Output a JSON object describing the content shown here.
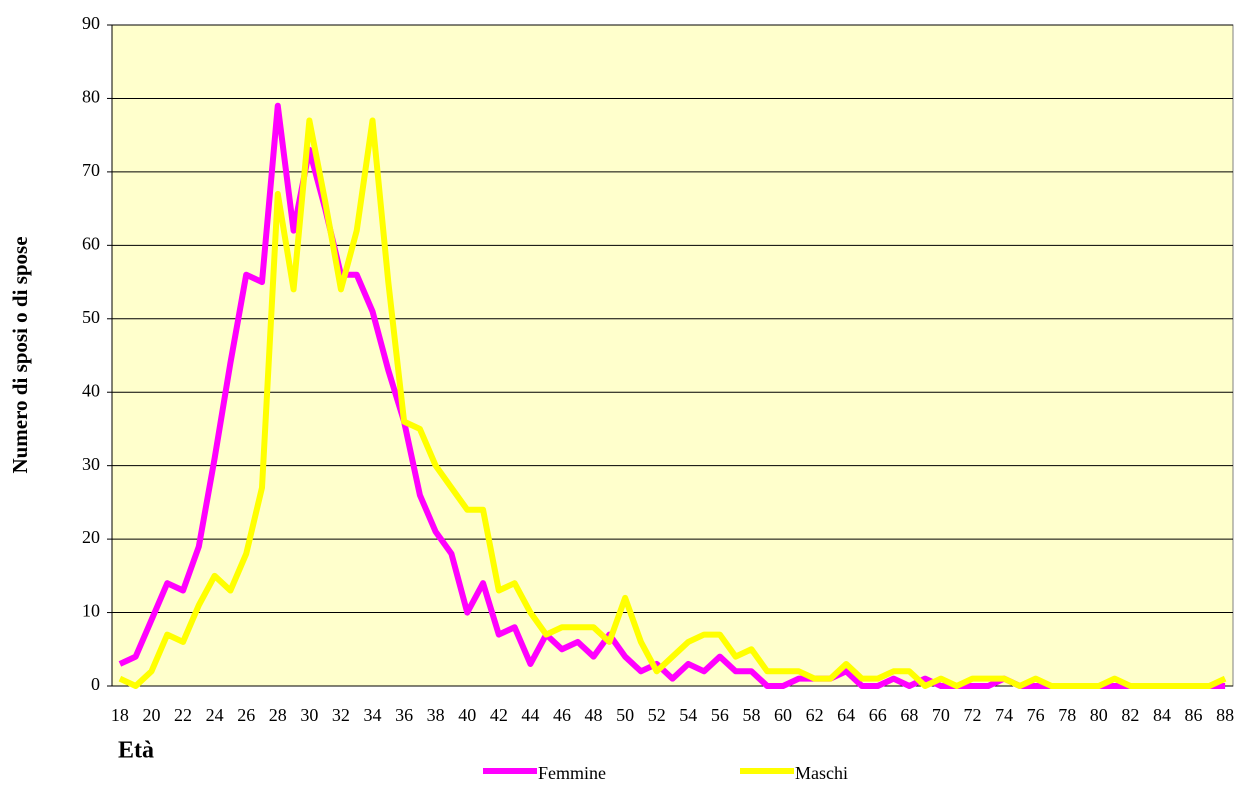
{
  "chart_data": {
    "type": "line",
    "xlabel": "Età",
    "ylabel": "Numero di sposi  o di spose",
    "categories": [
      "18",
      null,
      "20",
      null,
      "22",
      null,
      "24",
      null,
      "26",
      null,
      "28",
      null,
      "30",
      null,
      "32",
      null,
      "34",
      null,
      "36",
      null,
      "38",
      null,
      "40",
      null,
      "42",
      null,
      "44",
      null,
      "46",
      null,
      "48",
      null,
      "50",
      null,
      "52",
      null,
      "54",
      null,
      "56",
      null,
      "58",
      null,
      "60",
      null,
      "62",
      null,
      "64",
      null,
      "66",
      null,
      "68",
      null,
      "70",
      null,
      "72",
      null,
      "74",
      null,
      "76",
      null,
      "78",
      null,
      "80",
      null,
      "82",
      null,
      "84",
      null,
      "86",
      null,
      "88"
    ],
    "series": [
      {
        "name": "Femmine",
        "color": "#ff00ff",
        "values": [
          3,
          4,
          9,
          14,
          13,
          19,
          31,
          44,
          56,
          55,
          79,
          62,
          73,
          65,
          56,
          56,
          51,
          43,
          36,
          26,
          21,
          18,
          10,
          14,
          7,
          8,
          3,
          7,
          5,
          6,
          4,
          7,
          4,
          2,
          3,
          1,
          3,
          2,
          4,
          2,
          2,
          0,
          0,
          1,
          1,
          1,
          2,
          0,
          0,
          1,
          0,
          1,
          0,
          0,
          0,
          0,
          1,
          0,
          0,
          0,
          0,
          0,
          0,
          0,
          0,
          0,
          0,
          0,
          0,
          0,
          0
        ]
      },
      {
        "name": "Maschi",
        "color": "#ffff00",
        "values": [
          1,
          0,
          2,
          7,
          6,
          11,
          15,
          13,
          18,
          27,
          67,
          54,
          77,
          66,
          54,
          62,
          77,
          55,
          36,
          35,
          30,
          27,
          24,
          24,
          13,
          14,
          10,
          7,
          8,
          8,
          8,
          6,
          12,
          6,
          2,
          4,
          6,
          7,
          7,
          4,
          5,
          2,
          2,
          2,
          1,
          1,
          3,
          1,
          1,
          2,
          2,
          0,
          1,
          0,
          1,
          1,
          1,
          0,
          1,
          0,
          0,
          0,
          0,
          1,
          0,
          0,
          0,
          0,
          0,
          0,
          1
        ]
      }
    ],
    "ylim": [
      0,
      90
    ],
    "yticks": [
      0,
      10,
      20,
      30,
      40,
      50,
      60,
      70,
      80,
      90
    ],
    "grid": true,
    "legend": "bottom",
    "plot_background": "#ffffcc"
  }
}
